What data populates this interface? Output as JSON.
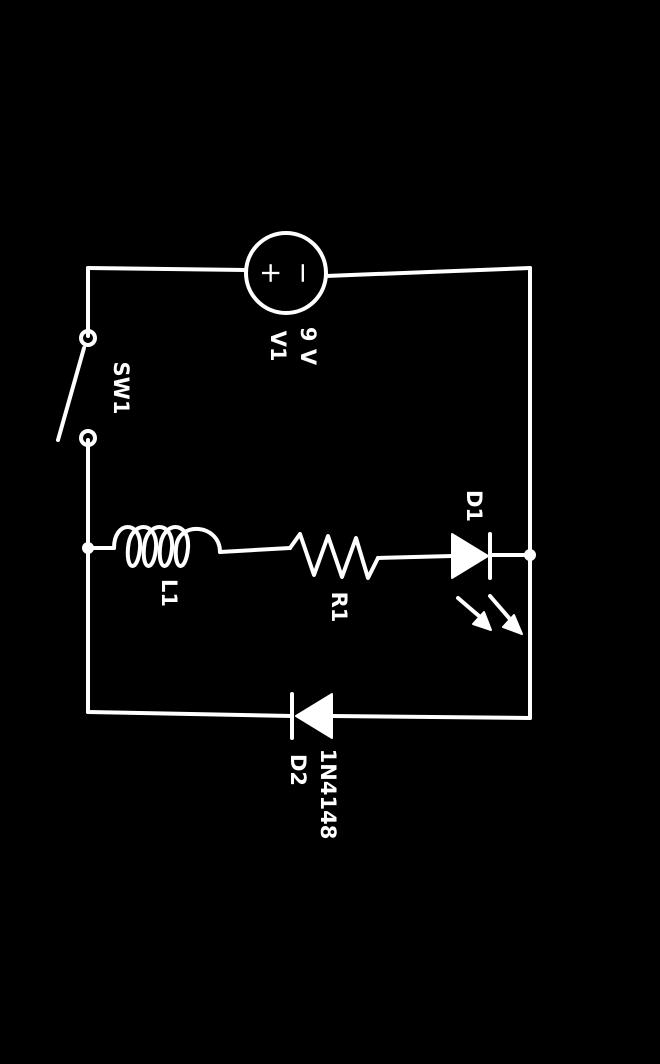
{
  "diagram": {
    "type": "circuit schematic",
    "orientation": "rotated 90 degrees clockwise, mirrored",
    "colors": {
      "background": "#000000",
      "stroke": "#ffffff"
    },
    "components": {
      "switch": {
        "ref": "SW1"
      },
      "source": {
        "ref": "V1",
        "value": "9 V",
        "value_number": "9",
        "value_unit": "V",
        "plus": "+",
        "minus": "−"
      },
      "inductor": {
        "ref": "L1"
      },
      "resistor": {
        "ref": "R1"
      },
      "led": {
        "ref": "D1"
      },
      "diode": {
        "ref": "D2",
        "part": "1N4148"
      }
    }
  }
}
